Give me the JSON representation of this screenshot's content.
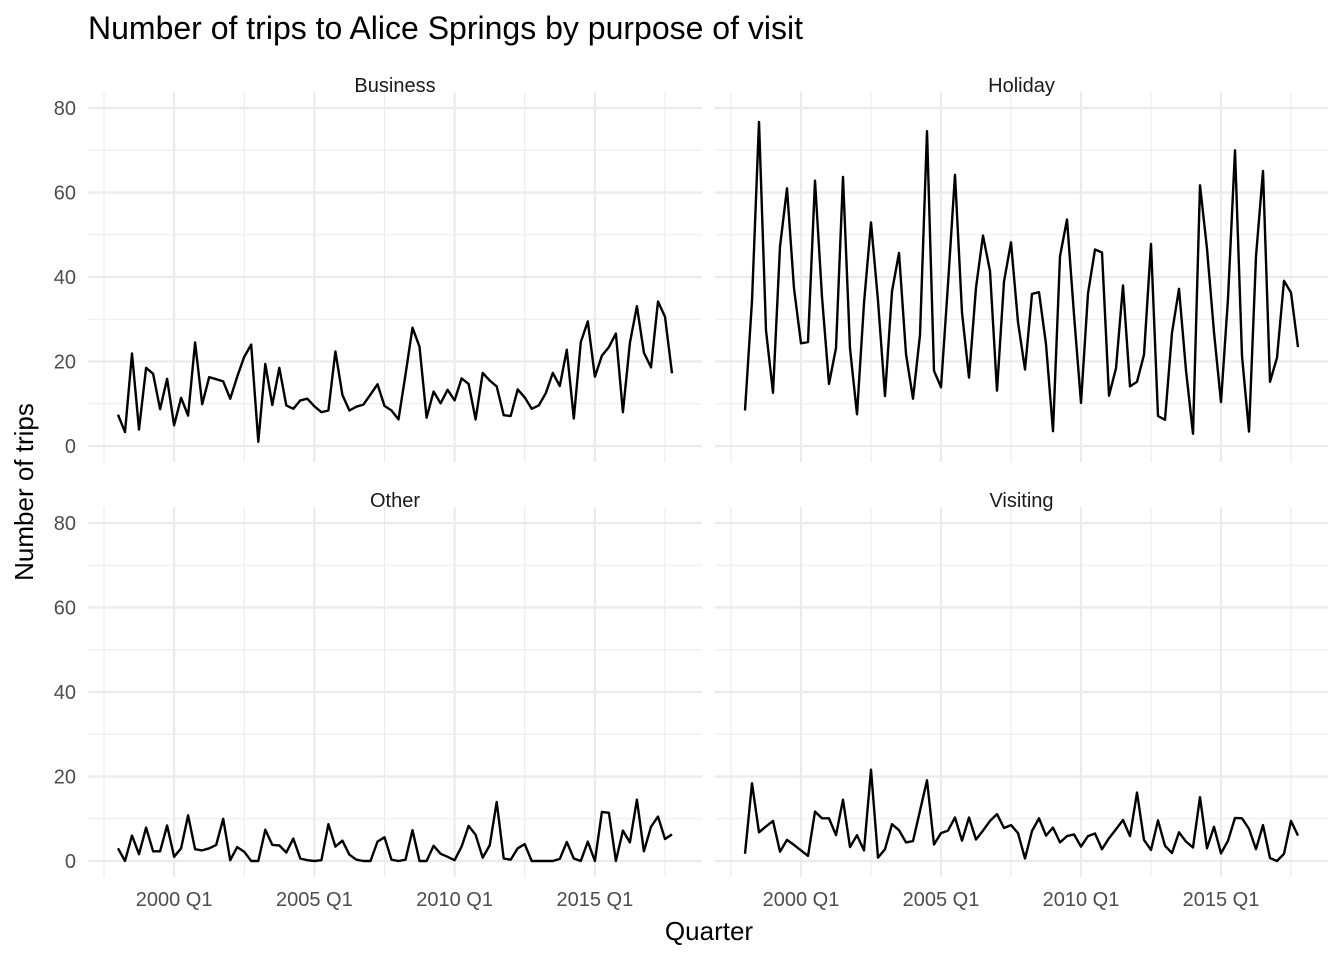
{
  "chart_data": {
    "type": "line",
    "title": "Number of trips to Alice Springs by purpose of visit",
    "xlabel": "Quarter",
    "ylabel": "Number of trips",
    "x_start": "1998 Q1",
    "x_end": "2017 Q4",
    "x_ticks": [
      "2000 Q1",
      "2005 Q1",
      "2010 Q1",
      "2015 Q1"
    ],
    "ylim": [
      0,
      80
    ],
    "y_ticks": [
      "0",
      "20",
      "40",
      "60",
      "80"
    ],
    "grid": true,
    "line_color": "#000000",
    "panels": [
      {
        "name": "Business",
        "values": [
          7.4,
          3.3,
          21.9,
          3.9,
          18.5,
          17.1,
          8.7,
          15.9,
          4.9,
          11.4,
          7.2,
          24.5,
          9.9,
          16.3,
          15.8,
          15.3,
          11.2,
          16.4,
          21.1,
          24.0,
          1.0,
          19.4,
          9.7,
          18.5,
          9.6,
          8.8,
          10.8,
          11.2,
          9.4,
          8.0,
          8.4,
          22.4,
          12.1,
          8.4,
          9.3,
          9.8,
          12.2,
          14.6,
          9.5,
          8.4,
          6.3,
          16.9,
          28.0,
          23.5,
          6.7,
          12.9,
          10.1,
          13.3,
          10.8,
          16.0,
          14.7,
          6.3,
          17.3,
          15.5,
          14.1,
          7.3,
          7.1,
          13.4,
          11.5,
          8.8,
          9.6,
          12.5,
          17.3,
          14.2,
          22.8,
          6.5,
          24.6,
          29.5,
          16.4,
          21.4,
          23.4,
          26.6,
          8.0,
          24.4,
          33.1,
          22.1,
          18.6,
          34.2,
          30.6,
          17.2
        ]
      },
      {
        "name": "Holiday",
        "values": [
          8.4,
          34.4,
          76.7,
          27.4,
          12.6,
          47.2,
          61.0,
          37.3,
          24.3,
          24.6,
          62.8,
          35.3,
          14.7,
          23.2,
          63.7,
          23.1,
          7.5,
          33.8,
          52.9,
          34.4,
          11.8,
          36.6,
          45.7,
          21.8,
          11.2,
          26.3,
          74.5,
          17.8,
          13.9,
          38.3,
          64.2,
          31.6,
          16.2,
          37.5,
          49.8,
          41.4,
          13.1,
          38.9,
          48.2,
          29.3,
          18.1,
          36.0,
          36.4,
          24.1,
          3.5,
          44.9,
          53.6,
          31.1,
          10.2,
          36.1,
          46.5,
          45.8,
          11.9,
          18.4,
          38.0,
          14.1,
          15.2,
          21.6,
          47.8,
          7.1,
          6.2,
          26.8,
          37.2,
          17.9,
          2.9,
          61.7,
          46.7,
          26.9,
          10.4,
          34.9,
          70.0,
          21.3,
          3.4,
          44.9,
          65.1,
          15.2,
          20.9,
          39.1,
          36.3,
          23.4
        ]
      },
      {
        "name": "Other",
        "values": [
          3.0,
          0.0,
          6.0,
          1.6,
          7.9,
          2.3,
          2.3,
          8.4,
          1.0,
          3.0,
          10.8,
          2.8,
          2.5,
          3.0,
          3.8,
          10.0,
          0.2,
          3.3,
          2.2,
          0.0,
          0.0,
          7.4,
          3.8,
          3.7,
          2.0,
          5.3,
          0.6,
          0.2,
          0.0,
          0.2,
          8.7,
          3.4,
          4.8,
          1.5,
          0.3,
          0.0,
          0.0,
          4.6,
          5.6,
          0.3,
          0.0,
          0.3,
          7.3,
          0.0,
          0.0,
          3.6,
          1.7,
          1.0,
          0.2,
          3.4,
          8.3,
          6.2,
          0.8,
          3.7,
          14.0,
          0.6,
          0.3,
          3.0,
          4.0,
          0.0,
          0.0,
          0.0,
          0.0,
          0.5,
          4.5,
          0.6,
          0.0,
          4.6,
          0.0,
          11.6,
          11.4,
          0.0,
          7.2,
          4.4,
          14.5,
          2.3,
          8.1,
          10.5,
          5.2,
          6.3
        ]
      },
      {
        "name": "Visiting",
        "values": [
          1.7,
          18.4,
          6.8,
          8.2,
          9.5,
          2.2,
          5.0,
          3.8,
          2.5,
          1.2,
          11.7,
          10.1,
          10.1,
          6.1,
          14.5,
          3.3,
          6.1,
          2.5,
          21.6,
          0.8,
          2.8,
          8.7,
          7.3,
          4.4,
          4.7,
          11.9,
          19.1,
          3.9,
          6.6,
          7.2,
          10.3,
          4.8,
          10.3,
          5.1,
          7.2,
          9.5,
          11.1,
          7.8,
          8.5,
          6.6,
          0.6,
          7.1,
          10.1,
          6.0,
          7.9,
          4.4,
          5.9,
          6.3,
          3.4,
          5.9,
          6.5,
          2.8,
          5.4,
          7.5,
          9.7,
          5.9,
          16.2,
          5.0,
          2.6,
          9.6,
          3.6,
          1.9,
          6.8,
          4.6,
          3.2,
          15.1,
          3.0,
          8.1,
          1.8,
          4.8,
          10.2,
          10.1,
          7.6,
          2.8,
          8.5,
          0.7,
          0.0,
          1.7,
          9.5,
          6.0
        ]
      }
    ]
  }
}
